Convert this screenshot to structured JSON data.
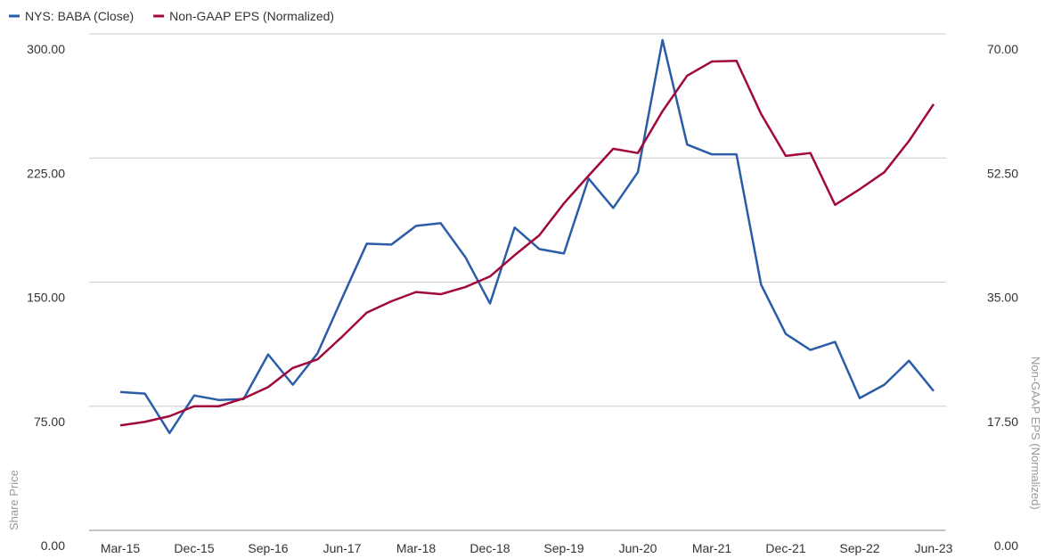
{
  "chart_data": {
    "type": "line",
    "categories": [
      "Mar-15",
      null,
      null,
      "Dec-15",
      null,
      null,
      "Sep-16",
      null,
      null,
      "Jun-17",
      null,
      null,
      "Mar-18",
      null,
      null,
      "Dec-18",
      null,
      null,
      "Sep-19",
      null,
      null,
      "Jun-20",
      null,
      null,
      "Mar-21",
      null,
      null,
      "Dec-21",
      null,
      null,
      "Sep-22",
      null,
      null,
      "Jun-23"
    ],
    "series": [
      {
        "name": "NYS: BABA (Close)",
        "color": "#2b5ca8",
        "axis": "y",
        "values": [
          83.6,
          82.6,
          58.8,
          81.5,
          78.8,
          79.3,
          106.3,
          88,
          106.9,
          140.3,
          173.2,
          172.7,
          184,
          185.6,
          165.1,
          137.1,
          183,
          170,
          167.3,
          212.6,
          194.8,
          216.4,
          296.3,
          233.1,
          227.2,
          227.2,
          148.4,
          118.7,
          109,
          113.9,
          79.9,
          88,
          102.5,
          84.2
        ]
      },
      {
        "name": "Non-GAAP EPS (Normalized)",
        "color": "#a1083d",
        "axis": "y2",
        "values": [
          14.8,
          15.3,
          16.1,
          17.5,
          17.5,
          18.6,
          20.2,
          22.9,
          24.1,
          27.3,
          30.7,
          32.3,
          33.6,
          33.3,
          34.3,
          35.8,
          38.8,
          41.6,
          46.1,
          50,
          53.8,
          53.2,
          59.1,
          64.1,
          66.1,
          66.2,
          58.7,
          52.8,
          53.2,
          45.9,
          48.1,
          50.5,
          54.9,
          60.1
        ]
      }
    ],
    "y_label": "Share Price",
    "y2_label": "Non-GAAP EPS (Normalized)",
    "ylim": [
      0,
      300
    ],
    "yticks": [
      {
        "value": 0,
        "label": "0.00"
      },
      {
        "value": 75,
        "label": "75.00"
      },
      {
        "value": 150,
        "label": "150.00"
      },
      {
        "value": 225,
        "label": "225.00"
      },
      {
        "value": 300,
        "label": "300.00"
      }
    ],
    "y2lim": [
      0,
      70
    ],
    "y2ticks": [
      {
        "value": 0,
        "label": "0.00"
      },
      {
        "value": 17.5,
        "label": "17.50"
      },
      {
        "value": 35,
        "label": "35.00"
      },
      {
        "value": 52.5,
        "label": "52.50"
      },
      {
        "value": 70,
        "label": "70.00"
      }
    ],
    "grid": true,
    "legend": "top-left"
  }
}
